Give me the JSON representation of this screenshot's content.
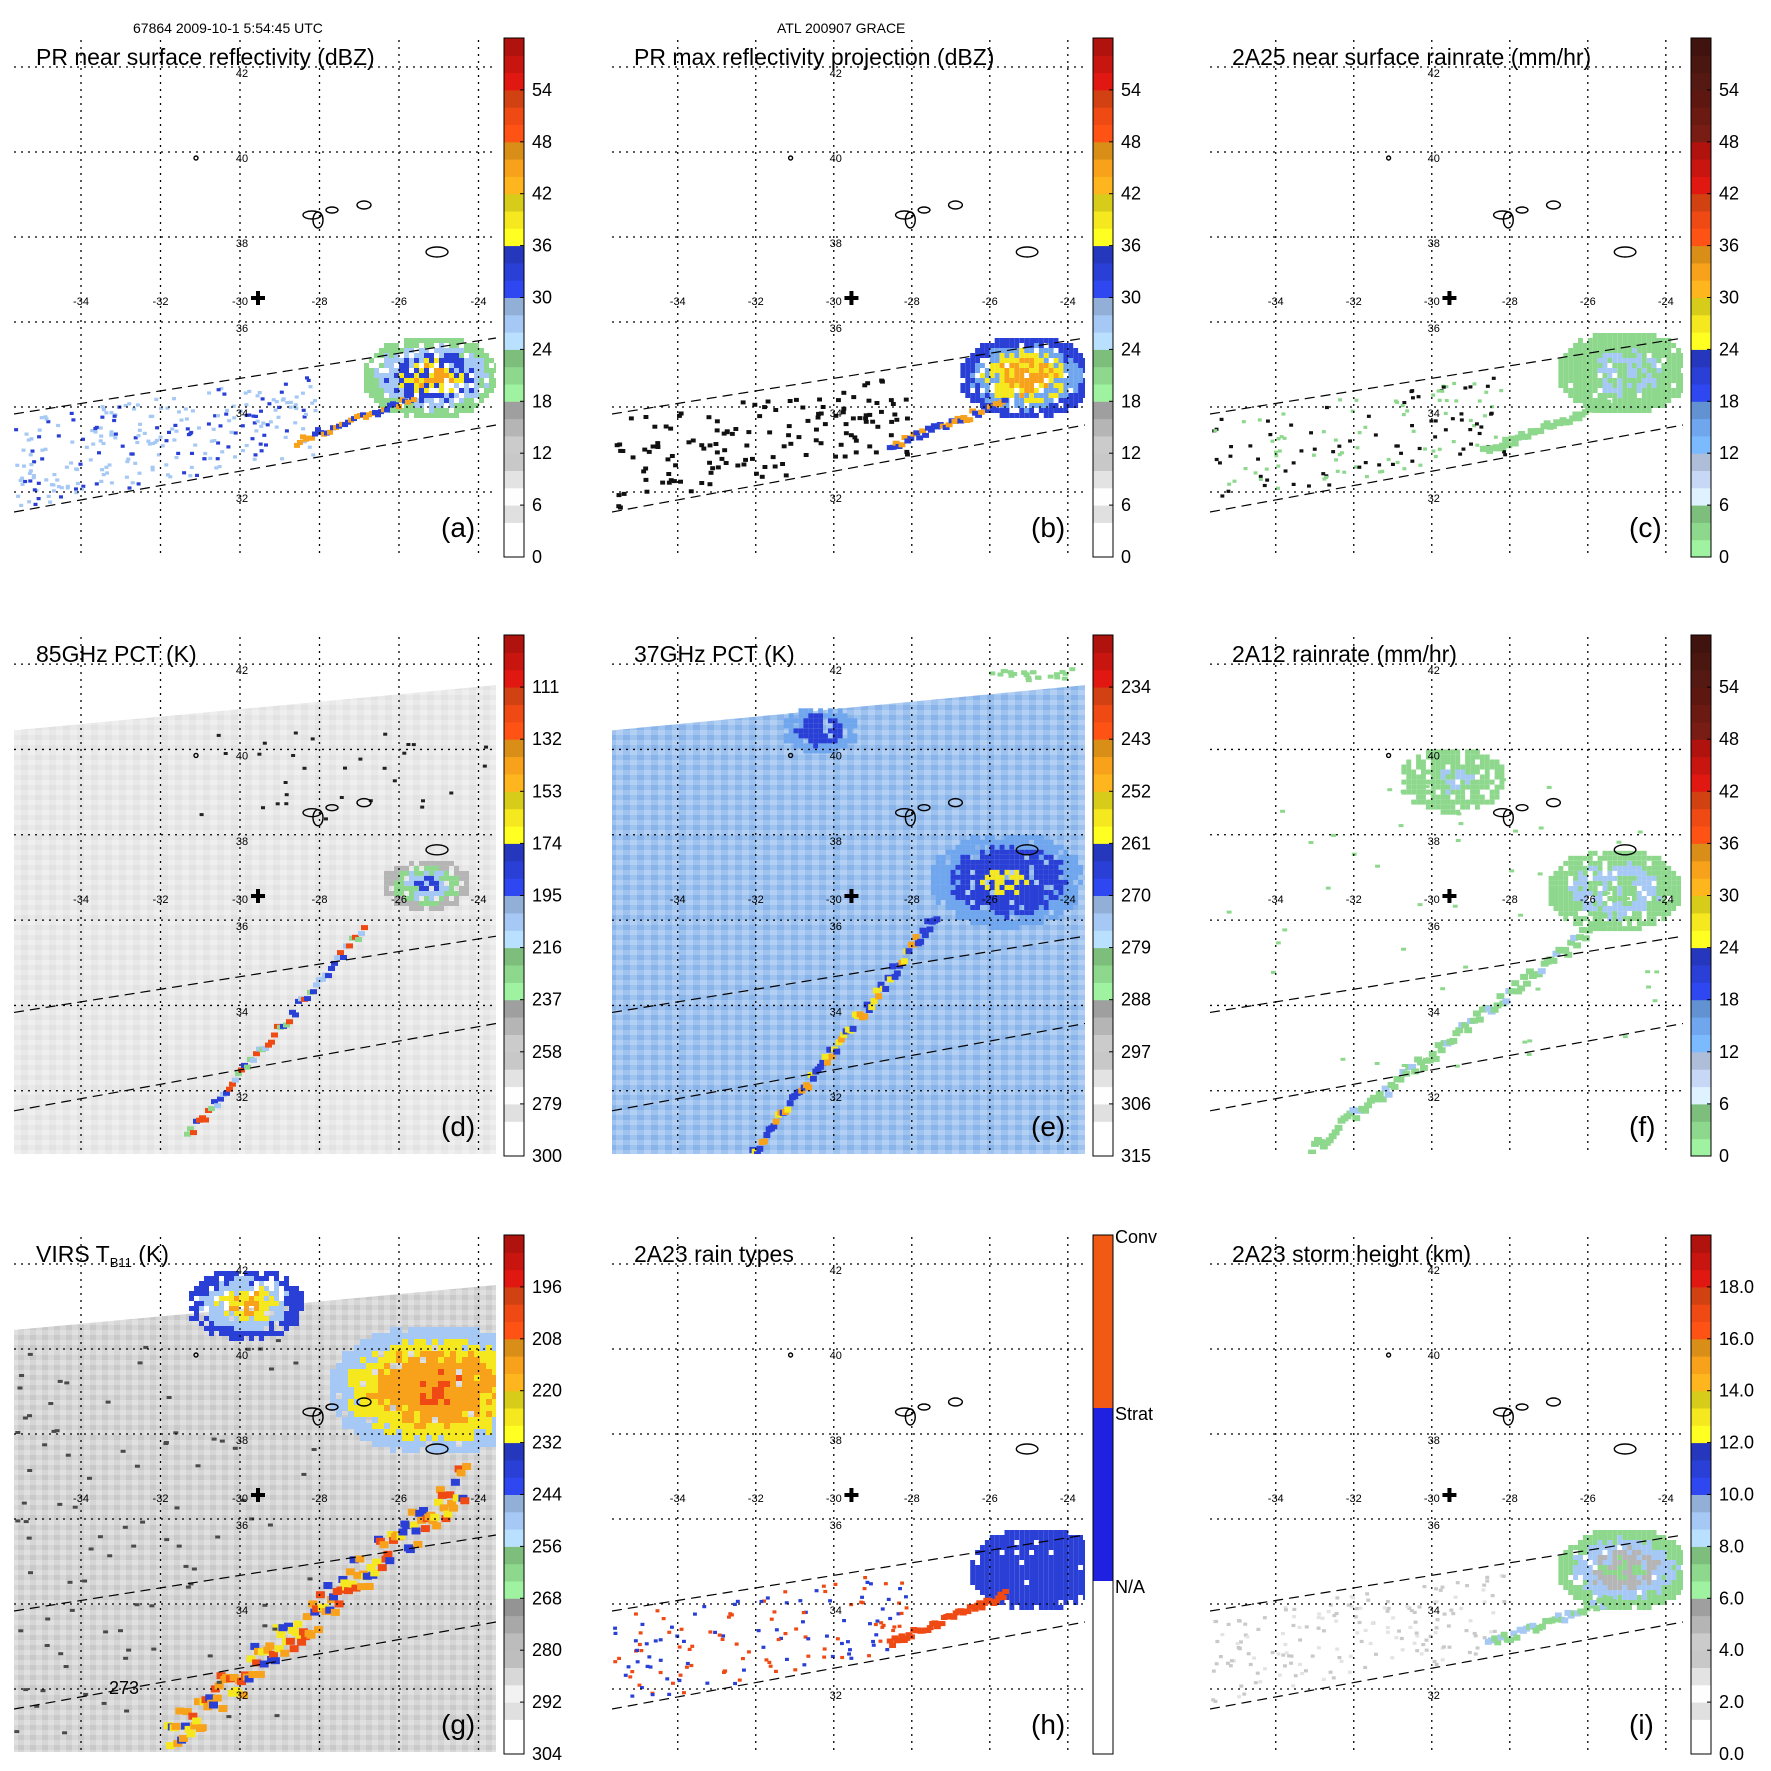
{
  "header": {
    "left": "67864 2009-10-1 5:54:45 UTC",
    "center": "ATL 200907 GRACE"
  },
  "map_labels": {
    "lon": [
      "-34",
      "-32",
      "-30",
      "-28",
      "-26",
      "-24"
    ],
    "lat": [
      "42",
      "40",
      "38",
      "36",
      "34",
      "32"
    ]
  },
  "chart_data": [
    {
      "id": "a",
      "type": "heatmap",
      "title": "PR near surface reflectivity (dBZ)",
      "letter": "(a)",
      "swath": "pr",
      "field": "pr_ns",
      "colorbar": {
        "ticks": [
          "0",
          "6",
          "12",
          "18",
          "24",
          "30",
          "36",
          "42",
          "48",
          "54"
        ],
        "palette": "refl"
      }
    },
    {
      "id": "b",
      "type": "heatmap",
      "title": "PR max reflectivity projection (dBZ)",
      "letter": "(b)",
      "swath": "pr",
      "field": "pr_max",
      "colorbar": {
        "ticks": [
          "0",
          "6",
          "12",
          "18",
          "24",
          "30",
          "36",
          "42",
          "48",
          "54"
        ],
        "palette": "refl"
      }
    },
    {
      "id": "c",
      "type": "heatmap",
      "title": "2A25 near surface rainrate (mm/hr)",
      "letter": "(c)",
      "swath": "pr",
      "field": "rain25",
      "colorbar": {
        "ticks": [
          "0",
          "6",
          "12",
          "18",
          "24",
          "30",
          "36",
          "42",
          "48",
          "54"
        ],
        "palette": "rain"
      }
    },
    {
      "id": "d",
      "type": "heatmap",
      "title": "85GHz PCT (K)",
      "letter": "(d)",
      "swath": "wide",
      "field": "pct85",
      "colorbar": {
        "ticks": [
          "300",
          "279",
          "258",
          "237",
          "216",
          "195",
          "174",
          "153",
          "132",
          "111"
        ],
        "palette": "pct"
      }
    },
    {
      "id": "e",
      "type": "heatmap",
      "title": "37GHz PCT (K)",
      "letter": "(e)",
      "swath": "wide",
      "field": "pct37",
      "colorbar": {
        "ticks": [
          "315",
          "306",
          "297",
          "288",
          "279",
          "270",
          "261",
          "252",
          "243",
          "234"
        ],
        "palette": "pct"
      }
    },
    {
      "id": "f",
      "type": "heatmap",
      "title": "2A12 rainrate (mm/hr)",
      "letter": "(f)",
      "swath": "wide",
      "field": "rain12",
      "colorbar": {
        "ticks": [
          "0",
          "6",
          "12",
          "18",
          "24",
          "30",
          "36",
          "42",
          "48",
          "54"
        ],
        "palette": "rain"
      }
    },
    {
      "id": "g",
      "type": "heatmap",
      "title": "VIRS T",
      "title_sub": "B11",
      "title_tail": " (K)",
      "letter": "(g)",
      "swath": "wide",
      "field": "virs",
      "annotation": "273",
      "colorbar": {
        "ticks": [
          "304",
          "292",
          "280",
          "268",
          "256",
          "244",
          "232",
          "220",
          "208",
          "196"
        ],
        "palette": "virs"
      }
    },
    {
      "id": "h",
      "type": "heatmap",
      "title": "2A23 rain types",
      "letter": "(h)",
      "swath": "pr",
      "field": "raintype",
      "colorbar": {
        "ticks": [
          "N/A",
          "Strat",
          "Conv"
        ],
        "palette": "types"
      }
    },
    {
      "id": "i",
      "type": "heatmap",
      "title": "2A23 storm height (km)",
      "letter": "(i)",
      "swath": "pr",
      "field": "height",
      "colorbar": {
        "ticks": [
          "0.0",
          "2.0",
          "4.0",
          "6.0",
          "8.0",
          "10.0",
          "12.0",
          "14.0",
          "16.0",
          "18.0"
        ],
        "palette": "height"
      }
    }
  ]
}
